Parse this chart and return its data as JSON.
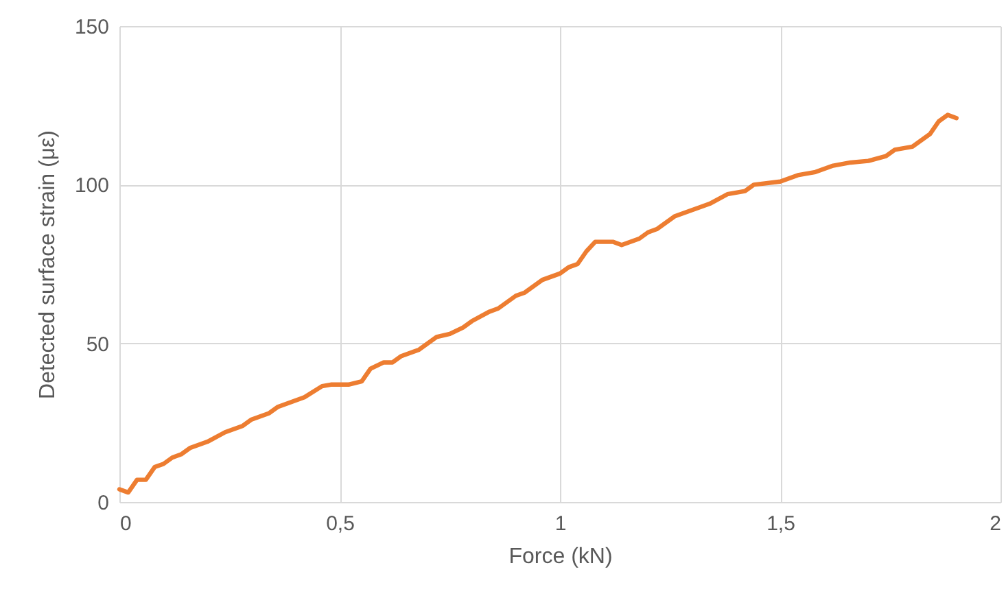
{
  "chart_data": {
    "type": "line",
    "xlabel": "Force (kN)",
    "ylabel": "Detected surface strain (με)",
    "xlim": [
      0,
      2
    ],
    "xticks": [
      0,
      {
        "value": 0.5,
        "label": "0,5"
      },
      1,
      {
        "value": 1.5,
        "label": "1,5"
      },
      2
    ],
    "ylim": [
      0,
      150
    ],
    "yticks": [
      0,
      50,
      100,
      150
    ],
    "grid": true,
    "series": [
      {
        "color": "#ed7d31",
        "x": [
          0,
          0.02,
          0.04,
          0.06,
          0.08,
          0.1,
          0.12,
          0.14,
          0.16,
          0.2,
          0.24,
          0.28,
          0.3,
          0.34,
          0.36,
          0.42,
          0.46,
          0.48,
          0.52,
          0.55,
          0.57,
          0.6,
          0.62,
          0.64,
          0.68,
          0.7,
          0.72,
          0.75,
          0.78,
          0.8,
          0.84,
          0.86,
          0.88,
          0.9,
          0.92,
          0.94,
          0.96,
          1.0,
          1.02,
          1.04,
          1.06,
          1.08,
          1.12,
          1.14,
          1.18,
          1.2,
          1.22,
          1.26,
          1.3,
          1.34,
          1.38,
          1.42,
          1.44,
          1.5,
          1.54,
          1.58,
          1.62,
          1.66,
          1.7,
          1.74,
          1.76,
          1.8,
          1.84,
          1.86,
          1.88,
          1.9
        ],
        "values": [
          4,
          3,
          7,
          7,
          11,
          12,
          14,
          15,
          17,
          19,
          22,
          24,
          26,
          28,
          30,
          33,
          36.5,
          37,
          37,
          38,
          42,
          44,
          44,
          46,
          48,
          50,
          52,
          53,
          55,
          57,
          60,
          61,
          63,
          65,
          66,
          68,
          70,
          72,
          74,
          75,
          79,
          82,
          82,
          81,
          83,
          85,
          86,
          90,
          92,
          94,
          97,
          98,
          100,
          101,
          103,
          104,
          106,
          107,
          107.5,
          109,
          111,
          112,
          116,
          120,
          122,
          121
        ]
      }
    ]
  }
}
